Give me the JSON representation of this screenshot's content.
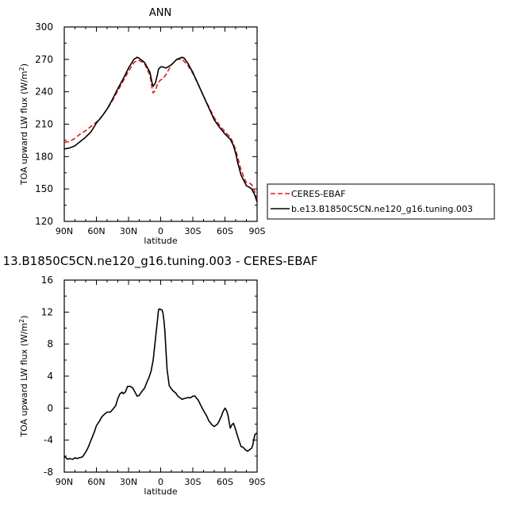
{
  "chart_data": [
    {
      "type": "line",
      "title": "ANN",
      "xlabel": "latitude",
      "ylabel": "TOA upward LW flux (W/m²)",
      "xlim": [
        90,
        -90
      ],
      "ylim": [
        120,
        300
      ],
      "xticks": [
        90,
        60,
        30,
        0,
        -30,
        -60,
        -90
      ],
      "xtick_labels": [
        "90N",
        "60N",
        "30N",
        "0",
        "30S",
        "60S",
        "90S"
      ],
      "yticks": [
        120,
        150,
        180,
        210,
        240,
        270,
        300
      ],
      "ytick_labels": [
        "120",
        "150",
        "180",
        "210",
        "240",
        "270",
        "300"
      ],
      "legend": {
        "placement": "right"
      },
      "series": [
        {
          "name": "CERES-EBAF",
          "color": "#e31a1c",
          "dash": "dashed",
          "x": [
            90,
            85,
            80,
            75,
            70,
            65,
            60,
            55,
            50,
            45,
            40,
            35,
            30,
            25,
            22,
            20,
            15,
            10,
            8,
            7,
            5,
            3,
            2,
            0,
            -2,
            -5,
            -10,
            -15,
            -20,
            -22,
            -25,
            -30,
            -35,
            -40,
            -45,
            -50,
            -55,
            -60,
            -65,
            -68,
            -70,
            -72,
            -75,
            -78,
            -80,
            -82,
            -85,
            -88,
            -90
          ],
          "y": [
            193,
            194,
            197,
            201,
            204,
            208,
            212,
            217,
            224,
            232,
            241,
            250,
            259,
            267,
            269,
            269,
            266,
            255,
            243,
            239,
            241,
            247,
            249,
            251,
            252,
            256,
            265,
            270,
            270,
            268,
            265,
            257,
            247,
            236,
            226,
            216,
            209,
            203,
            198,
            192,
            186,
            179,
            168,
            160,
            156,
            156,
            154,
            147,
            139
          ]
        },
        {
          "name": "b.e13.B1850C5CN.ne120_g16.tuning.003",
          "color": "#000000",
          "dash": "solid",
          "x": [
            90,
            85,
            80,
            75,
            70,
            65,
            60,
            55,
            50,
            45,
            40,
            35,
            30,
            25,
            22,
            20,
            15,
            10,
            8,
            7,
            5,
            3,
            2,
            0,
            -2,
            -5,
            -10,
            -15,
            -20,
            -22,
            -25,
            -30,
            -35,
            -40,
            -45,
            -50,
            -55,
            -60,
            -65,
            -68,
            -70,
            -72,
            -75,
            -78,
            -80,
            -82,
            -85,
            -88,
            -90
          ],
          "y": [
            187,
            188,
            190,
            194,
            198,
            203,
            211,
            217,
            224,
            233,
            243,
            252,
            262,
            270,
            272,
            271,
            267,
            258,
            248,
            245,
            248,
            256,
            261,
            263,
            263,
            262,
            265,
            270,
            272,
            271,
            267,
            258,
            247,
            236,
            225,
            214,
            207,
            201,
            196,
            190,
            183,
            174,
            163,
            157,
            153,
            152,
            150,
            144,
            138
          ]
        }
      ]
    },
    {
      "type": "line",
      "title": "13.B1850C5CN.ne120_g16.tuning.003 - CERES-EBAF",
      "xlabel": "latitude",
      "ylabel": "TOA upward LW flux (W/m²)",
      "xlim": [
        90,
        -90
      ],
      "ylim": [
        -8,
        16
      ],
      "xticks": [
        90,
        60,
        30,
        0,
        -30,
        -60,
        -90
      ],
      "xtick_labels": [
        "90N",
        "60N",
        "30N",
        "0",
        "30S",
        "60S",
        "90S"
      ],
      "yticks": [
        -8,
        -4,
        0,
        4,
        8,
        12,
        16
      ],
      "ytick_labels": [
        "-8",
        "-4",
        "0",
        "4",
        "8",
        "12",
        "16"
      ],
      "series": [
        {
          "color": "#000000",
          "dash": "solid",
          "x": [
            90,
            87,
            85,
            82,
            80,
            78,
            76,
            73,
            70,
            68,
            65,
            62,
            60,
            57,
            55,
            52,
            50,
            47,
            45,
            42,
            40,
            38,
            36,
            35,
            33,
            31,
            28,
            26,
            24,
            22,
            20,
            18,
            15,
            13,
            11,
            9,
            7,
            5,
            3,
            2,
            1,
            0,
            -1,
            -2,
            -3,
            -4,
            -5,
            -6,
            -8,
            -10,
            -12,
            -14,
            -16,
            -18,
            -20,
            -22,
            -25,
            -28,
            -30,
            -32,
            -35,
            -38,
            -40,
            -43,
            -45,
            -48,
            -50,
            -53,
            -55,
            -57,
            -58,
            -60,
            -61,
            -62,
            -63,
            -64,
            -65,
            -66,
            -67,
            -68,
            -70,
            -72,
            -74,
            -75,
            -77,
            -79,
            -81,
            -83,
            -85,
            -86,
            -87,
            -88,
            -89,
            -90
          ],
          "y": [
            -6.0,
            -6.4,
            -6.3,
            -6.4,
            -6.2,
            -6.3,
            -6.2,
            -6.1,
            -5.5,
            -5.0,
            -4.0,
            -3.0,
            -2.2,
            -1.6,
            -1.1,
            -0.7,
            -0.5,
            -0.5,
            -0.2,
            0.3,
            1.2,
            1.8,
            2.0,
            1.8,
            2.0,
            2.7,
            2.7,
            2.5,
            2.0,
            1.5,
            1.6,
            2.0,
            2.5,
            3.2,
            3.8,
            4.6,
            6.0,
            8.5,
            11.0,
            12.3,
            12.4,
            12.3,
            12.3,
            12.0,
            11.0,
            9.5,
            7.0,
            4.8,
            2.8,
            2.4,
            2.1,
            1.9,
            1.5,
            1.3,
            1.1,
            1.2,
            1.3,
            1.3,
            1.5,
            1.5,
            1.0,
            0.2,
            -0.3,
            -1.0,
            -1.6,
            -2.1,
            -2.3,
            -2.0,
            -1.5,
            -0.9,
            -0.5,
            0.0,
            -0.2,
            -0.5,
            -1.0,
            -1.8,
            -2.5,
            -2.2,
            -2.0,
            -1.9,
            -2.7,
            -3.6,
            -4.4,
            -4.8,
            -4.9,
            -5.2,
            -5.4,
            -5.2,
            -5.0,
            -4.6,
            -3.9,
            -3.3,
            -3.2,
            -3.1
          ]
        }
      ]
    }
  ]
}
